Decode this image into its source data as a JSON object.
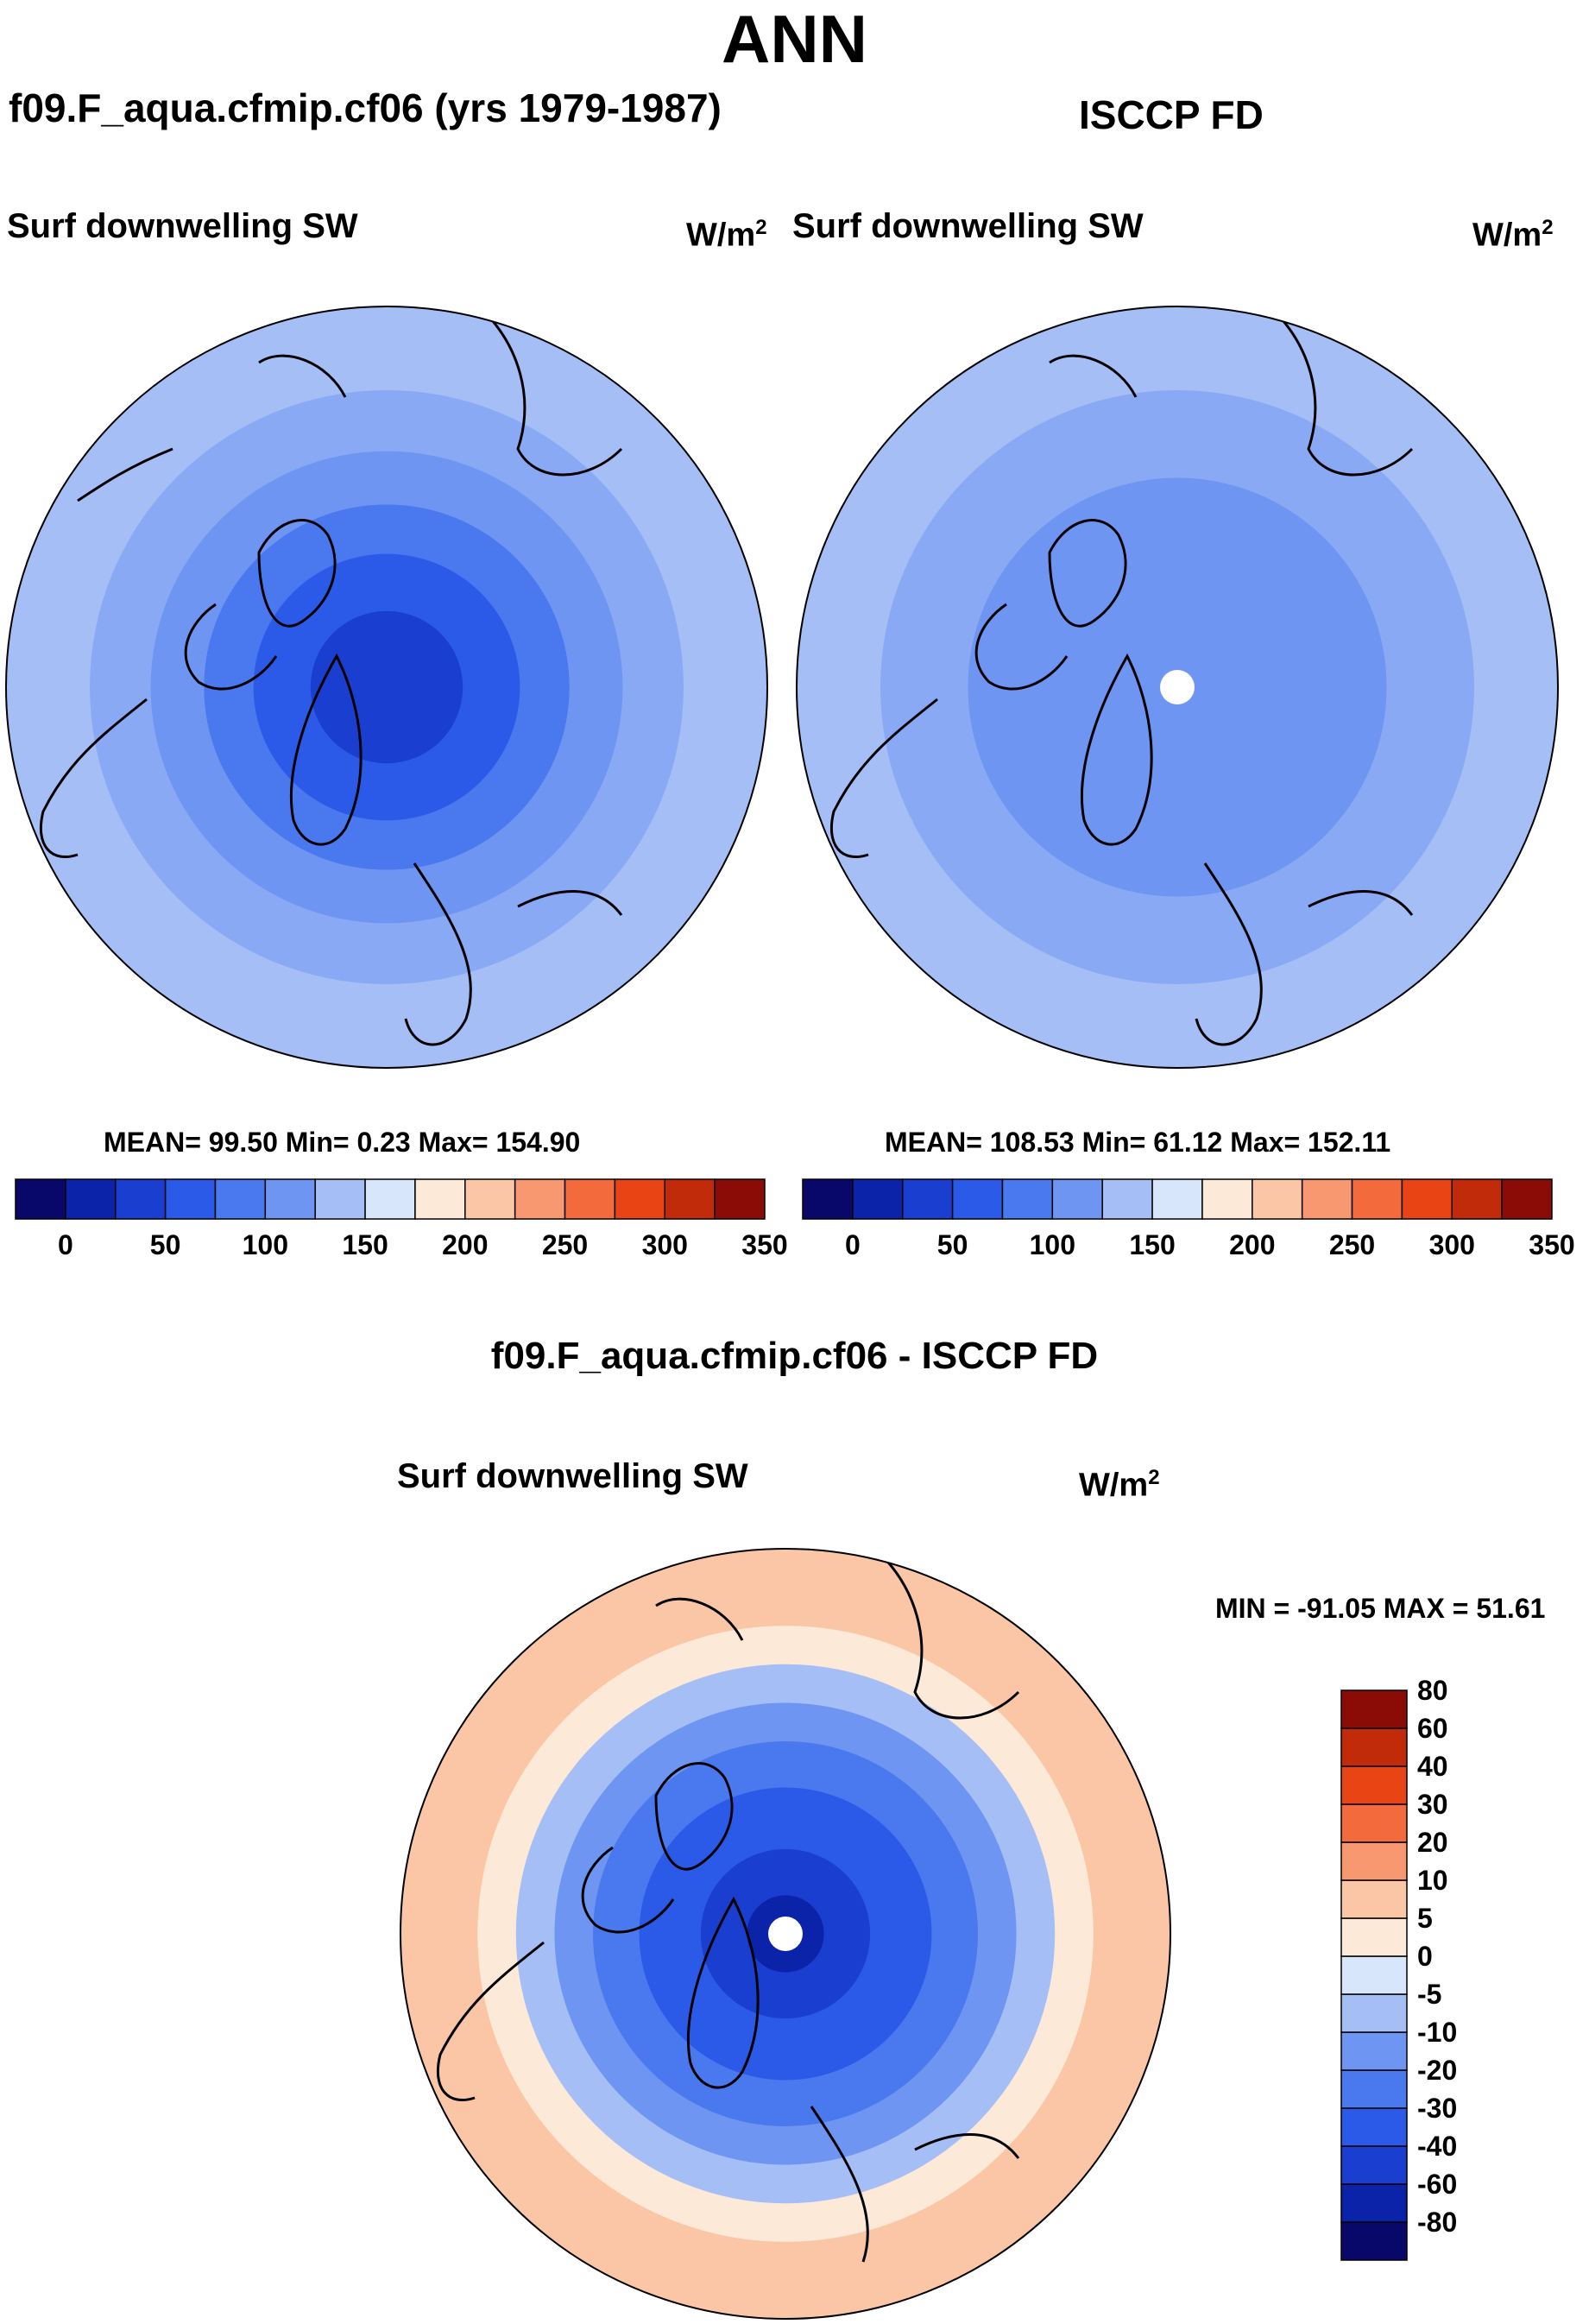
{
  "header": {
    "title": "ANN",
    "case_name": "f09.F_aqua.cfmip.cf06 (yrs 1979-1987)",
    "obs_name": "ISCCP FD"
  },
  "panel_model": {
    "variable": "Surf downwelling SW",
    "unit_base": "W/m",
    "unit_exp": "2",
    "stats": "MEAN=  99.50  Min=   0.23  Max= 154.90"
  },
  "panel_obs": {
    "variable": "Surf downwelling SW",
    "unit_base": "W/m",
    "unit_exp": "2",
    "stats": "MEAN= 108.53  Min=  61.12  Max= 152.11"
  },
  "panel_diff": {
    "title": "f09.F_aqua.cfmip.cf06 - ISCCP FD",
    "variable": "Surf downwelling SW",
    "unit_base": "W/m",
    "unit_exp": "2",
    "stats": "MIN = -91.05 MAX =  51.61"
  },
  "colorbar_main": {
    "colors": [
      "#08086b",
      "#0b23a8",
      "#1a3ed0",
      "#2c5ae8",
      "#4a78ee",
      "#6f95f2",
      "#a5bef6",
      "#d7e6fa",
      "#fde9d8",
      "#fbc6a5",
      "#f89870",
      "#f36a3c",
      "#e84414",
      "#c22b09",
      "#8b0b06"
    ],
    "labels": [
      "0",
      "50",
      "100",
      "150",
      "200",
      "250",
      "300",
      "350"
    ]
  },
  "colorbar_diff": {
    "colors": [
      "#08086b",
      "#0b23a8",
      "#1a3ed0",
      "#2c5ae8",
      "#4a78ee",
      "#6f95f2",
      "#a5bef6",
      "#d7e6fa",
      "#fde9d8",
      "#fbc6a5",
      "#f89870",
      "#f36a3c",
      "#e84414",
      "#c22b09",
      "#8b0b06"
    ],
    "labels": [
      "-80",
      "-60",
      "-40",
      "-30",
      "-20",
      "-10",
      "-5",
      "0",
      "5",
      "10",
      "20",
      "30",
      "40",
      "60",
      "80"
    ]
  },
  "maps": {
    "model": {
      "rings": [
        {
          "r_frac": 1.0,
          "value": 140,
          "color": "#a5bef6"
        },
        {
          "r_frac": 0.78,
          "value": 120,
          "color": "#8aa9f4"
        },
        {
          "r_frac": 0.62,
          "value": 100,
          "color": "#6f95f2"
        },
        {
          "r_frac": 0.48,
          "value": 75,
          "color": "#4a78ee"
        },
        {
          "r_frac": 0.35,
          "value": 50,
          "color": "#2c5ae8"
        },
        {
          "r_frac": 0.2,
          "value": 25,
          "color": "#1a3ed0"
        }
      ]
    },
    "obs": {
      "rings": [
        {
          "r_frac": 1.0,
          "value": 140,
          "color": "#a5bef6"
        },
        {
          "r_frac": 0.78,
          "value": 120,
          "color": "#8aa9f4"
        },
        {
          "r_frac": 0.55,
          "value": 100,
          "color": "#6f95f2"
        }
      ],
      "missing_pole": true
    },
    "diff": {
      "rings": [
        {
          "r_frac": 1.0,
          "value": 20,
          "color": "#fbc6a5"
        },
        {
          "r_frac": 0.8,
          "value": 5,
          "color": "#fde9d8"
        },
        {
          "r_frac": 0.7,
          "value": -10,
          "color": "#a5bef6"
        },
        {
          "r_frac": 0.6,
          "value": -20,
          "color": "#6f95f2"
        },
        {
          "r_frac": 0.5,
          "value": -30,
          "color": "#4a78ee"
        },
        {
          "r_frac": 0.38,
          "value": -40,
          "color": "#2c5ae8"
        },
        {
          "r_frac": 0.22,
          "value": -60,
          "color": "#1a3ed0"
        },
        {
          "r_frac": 0.1,
          "value": -80,
          "color": "#0b23a8"
        }
      ],
      "missing_pole": true
    }
  }
}
